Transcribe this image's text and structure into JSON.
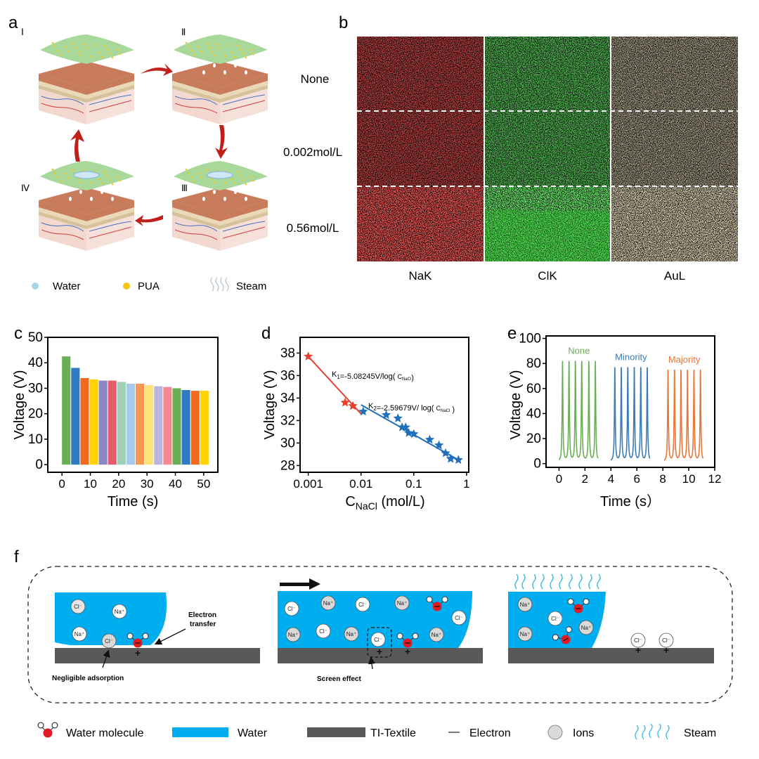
{
  "panel_letters": {
    "a": "a",
    "b": "b",
    "c": "c",
    "d": "d",
    "e": "e",
    "f": "f"
  },
  "panel_a": {
    "stages": [
      "Ⅰ",
      "Ⅱ",
      "Ⅲ",
      "Ⅳ"
    ],
    "legend": [
      {
        "label": "Water",
        "icon": "water-droplet-icon"
      },
      {
        "label": "PUA",
        "icon": "pua-dot-icon"
      },
      {
        "label": "Steam",
        "icon": "steam-icon"
      }
    ],
    "colors": {
      "arrow": "#c0201a",
      "membrane": "#a9d89b",
      "skin": "#c87c5c"
    }
  },
  "panel_b": {
    "rows": [
      "None",
      "0.002mol/L",
      "0.56mol/L"
    ],
    "columns": [
      "NaK",
      "ClK",
      "AuL"
    ],
    "colors": {
      "NaK": "#e0262a",
      "ClK": "#2fd62f",
      "AuL": "#d9c48a"
    }
  },
  "chart_data": [
    {
      "panel": "c",
      "type": "bar",
      "xlabel": "Time (s)",
      "ylabel": "Voltage (V)",
      "xlim": [
        -5,
        55
      ],
      "ylim": [
        -3,
        50
      ],
      "xticks": [
        0,
        10,
        20,
        30,
        40,
        50
      ],
      "yticks": [
        0,
        10,
        20,
        30,
        40,
        50
      ],
      "grid": false,
      "bar_start_times": [
        0,
        3.25,
        6.5,
        9.75,
        13,
        16.25,
        19.5,
        22.75,
        26,
        29.25,
        32.5,
        35.75,
        39,
        42.25,
        45.5,
        48.75
      ],
      "bar_duration": 3,
      "values": [
        42.5,
        38,
        34,
        33.5,
        33,
        33,
        32.5,
        31.8,
        31.8,
        31.2,
        30.8,
        30.5,
        30,
        29.3,
        29,
        29
      ],
      "colors": [
        "#6aae55",
        "#2f7bc4",
        "#f0691f",
        "#ffd200",
        "#8c88c6",
        "#e45c6a",
        "#9fd2b4",
        "#a9c9ea",
        "#f5984f",
        "#fde27a",
        "#b9b5dd",
        "#f28a90",
        "#6aae55",
        "#2f7bc4",
        "#f0691f",
        "#ffd200"
      ]
    },
    {
      "panel": "d",
      "type": "scatter",
      "xscale": "log",
      "xlabel_main": "C",
      "xlabel_sub": "NaCl",
      "xlabel_unit": " (mol/L)",
      "ylabel": "Voltage (V)",
      "xlim": [
        0.0007,
        1.1
      ],
      "ylim": [
        27.4,
        39.4
      ],
      "xticks": [
        0.001,
        0.01,
        0.1,
        1
      ],
      "xtick_labels": [
        "0.001",
        "0.01",
        "0.1",
        "1"
      ],
      "yticks": [
        28,
        30,
        32,
        34,
        36,
        38
      ],
      "grid": false,
      "series": [
        {
          "color": "#e8402e",
          "marker": "star",
          "x": [
            0.001,
            0.005,
            0.007
          ],
          "y": [
            37.7,
            33.6,
            33.3
          ],
          "fit": {
            "x": [
              0.001,
              0.01
            ],
            "y": [
              37.7,
              32.6
            ]
          }
        },
        {
          "color": "#1f6fba",
          "marker": "star",
          "x": [
            0.011,
            0.03,
            0.05,
            0.06,
            0.07,
            0.08,
            0.1,
            0.2,
            0.3,
            0.4,
            0.5,
            0.7
          ],
          "y": [
            32.8,
            32.5,
            32.2,
            31.4,
            31.4,
            30.9,
            30.8,
            30.3,
            29.8,
            29.1,
            28.6,
            28.5
          ],
          "fit": {
            "x": [
              0.01,
              0.7
            ],
            "y": [
              33.4,
              28.5
            ]
          }
        }
      ],
      "annotations": [
        {
          "k": "K",
          "ksub": "1",
          "eq": "=-5.08245V/log( ",
          "c": "C",
          "csub": "NaCl",
          "end": ")"
        },
        {
          "k": "K",
          "ksub": "2",
          "eq": "=-2.59679V/ log( ",
          "c": "C",
          "csub": "NaCl",
          "end": " )"
        }
      ]
    },
    {
      "panel": "e",
      "type": "line",
      "xlabel": "Time (s）",
      "ylabel": "Voltage (V)",
      "xlim": [
        -1,
        12
      ],
      "ylim": [
        -3,
        102
      ],
      "xticks": [
        0,
        2,
        4,
        6,
        8,
        10,
        12
      ],
      "yticks": [
        0,
        20,
        40,
        60,
        80,
        100
      ],
      "grid": false,
      "series": [
        {
          "name": "None",
          "color": "#6aae55",
          "t_range": [
            0,
            3.0
          ],
          "peak_times": [
            0.27,
            0.77,
            1.26,
            1.75,
            2.3,
            2.8
          ],
          "peak_value": 82,
          "baseline": 1.5
        },
        {
          "name": "Minority",
          "color": "#3b7bb8",
          "t_range": [
            4.0,
            7.0
          ],
          "peak_times": [
            4.3,
            4.8,
            5.3,
            5.8,
            6.3,
            6.8
          ],
          "peak_value": 77,
          "baseline": 1.5
        },
        {
          "name": "Majority",
          "color": "#e8773a",
          "t_range": [
            8.1,
            11.1
          ],
          "peak_times": [
            8.4,
            8.9,
            9.4,
            9.9,
            10.4,
            10.9
          ],
          "peak_value": 75,
          "baseline": 1.5
        }
      ]
    }
  ],
  "panel_f": {
    "scenes": [
      {
        "ions": [
          "Cl⁻",
          "Na⁺",
          "Na⁺",
          "Cl⁻"
        ],
        "labels": {
          "transfer": [
            "Electron",
            "transfer"
          ],
          "adsorption": "Negligible adsorption"
        }
      },
      {
        "ions": [
          "Cl⁻",
          "Na⁺",
          "Cl⁻",
          "Na⁺",
          "Cl⁻",
          "Na⁺",
          "Cl⁻",
          "Na⁺",
          "Cl⁻",
          "Na⁺"
        ],
        "labels": {
          "screen": "Screen effect"
        }
      },
      {
        "ions": [
          "Na⁺",
          "Cl⁻",
          "Na⁺",
          "Na⁺",
          "Cl⁻",
          "Cl⁻"
        ]
      }
    ],
    "plus": "+",
    "legend": [
      {
        "label": "Water molecule",
        "icon": "water-molecule-icon"
      },
      {
        "label": "Water",
        "icon": "water-swatch-icon"
      },
      {
        "label": "TI-Textile",
        "icon": "textile-swatch-icon"
      },
      {
        "label": "Electron",
        "symbol": "—",
        "icon": "electron-icon"
      },
      {
        "label": "Ions",
        "icon": "ion-icon"
      },
      {
        "label": "Steam",
        "icon": "steam-icon"
      }
    ],
    "colors": {
      "water": "#00adef",
      "textile": "#595959",
      "oxygen": "#e21b23",
      "ion_grey": "#d9d9d9"
    }
  }
}
